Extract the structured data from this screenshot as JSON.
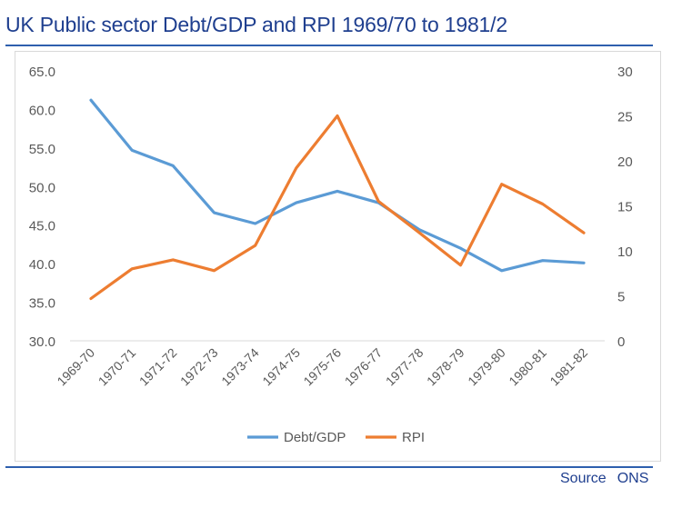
{
  "header": {
    "title": "UK Public sector Debt/GDP and RPI 1969/70 to 1981/2"
  },
  "footer": {
    "source_label": "Source",
    "source_value": "ONS"
  },
  "chart_data": {
    "type": "line",
    "title": "UK Public sector Debt/GDP and RPI 1969/70 to 1981/2",
    "xlabel": "",
    "ylabel": "",
    "categories": [
      "1969-70",
      "1970-71",
      "1971-72",
      "1972-73",
      "1973-74",
      "1974-75",
      "1975-76",
      "1976-77",
      "1977-78",
      "1978-79",
      "1979-80",
      "1980-81",
      "1981-82"
    ],
    "left_axis": {
      "ylim": [
        30,
        65
      ],
      "ticks": [
        "30.0",
        "35.0",
        "40.0",
        "45.0",
        "50.0",
        "55.0",
        "60.0",
        "65.0"
      ]
    },
    "right_axis": {
      "ylim": [
        0,
        30
      ],
      "ticks": [
        "0",
        "5",
        "10",
        "15",
        "20",
        "25",
        "30"
      ]
    },
    "grid": false,
    "legend_position": "bottom",
    "series": [
      {
        "name": "Debt/GDP",
        "axis": "left",
        "color": "#5b9bd5",
        "values": [
          61.2,
          54.7,
          52.7,
          46.6,
          45.2,
          47.9,
          49.4,
          47.9,
          44.4,
          42.0,
          39.1,
          40.4,
          40.1
        ]
      },
      {
        "name": "RPI",
        "axis": "right",
        "color": "#ed7d31",
        "values": [
          4.7,
          8.0,
          9.0,
          7.8,
          10.6,
          19.2,
          25.0,
          15.5,
          12.0,
          8.4,
          17.4,
          15.2,
          12.0
        ]
      }
    ]
  }
}
